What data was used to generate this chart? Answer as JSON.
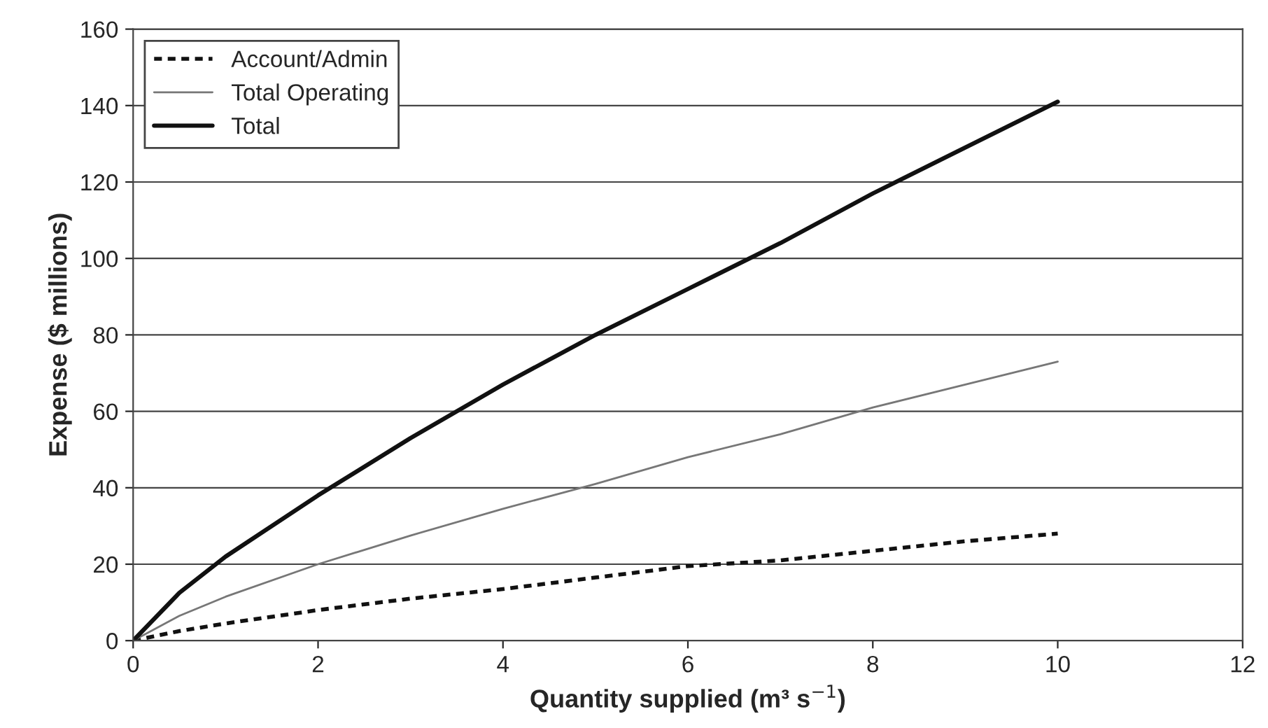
{
  "chart_data": {
    "type": "line",
    "xlabel": "Quantity supplied (m³ s$^{−1}$)",
    "ylabel": "Expense ($ millions)",
    "x": [
      0,
      0.5,
      1,
      2,
      3,
      4,
      5,
      6,
      7,
      8,
      9,
      10
    ],
    "series": [
      {
        "name": "Account/Admin",
        "color": "#111111",
        "line_style": "dashed",
        "values": [
          0,
          2.5,
          4.5,
          8,
          11,
          13.5,
          16.5,
          19.5,
          21,
          23.5,
          26,
          28
        ]
      },
      {
        "name": "Total Operating",
        "color": "#777777",
        "line_style": "solid",
        "values": [
          0,
          6.5,
          11.5,
          20,
          27.5,
          34.5,
          41,
          48,
          54,
          61,
          67,
          73
        ]
      },
      {
        "name": "Total",
        "color": "#111111",
        "line_style": "solid",
        "values": [
          0,
          12.5,
          22,
          38,
          53,
          67,
          80,
          92,
          104,
          117,
          129,
          141
        ]
      }
    ],
    "xlim": [
      0,
      12
    ],
    "xticks": [
      0,
      2,
      4,
      6,
      8,
      10,
      12
    ],
    "ylim": [
      0,
      160
    ],
    "yticks": [
      0,
      20,
      40,
      60,
      80,
      100,
      120,
      140,
      160
    ],
    "grid": "y",
    "legend": "top left",
    "marker": "none"
  }
}
